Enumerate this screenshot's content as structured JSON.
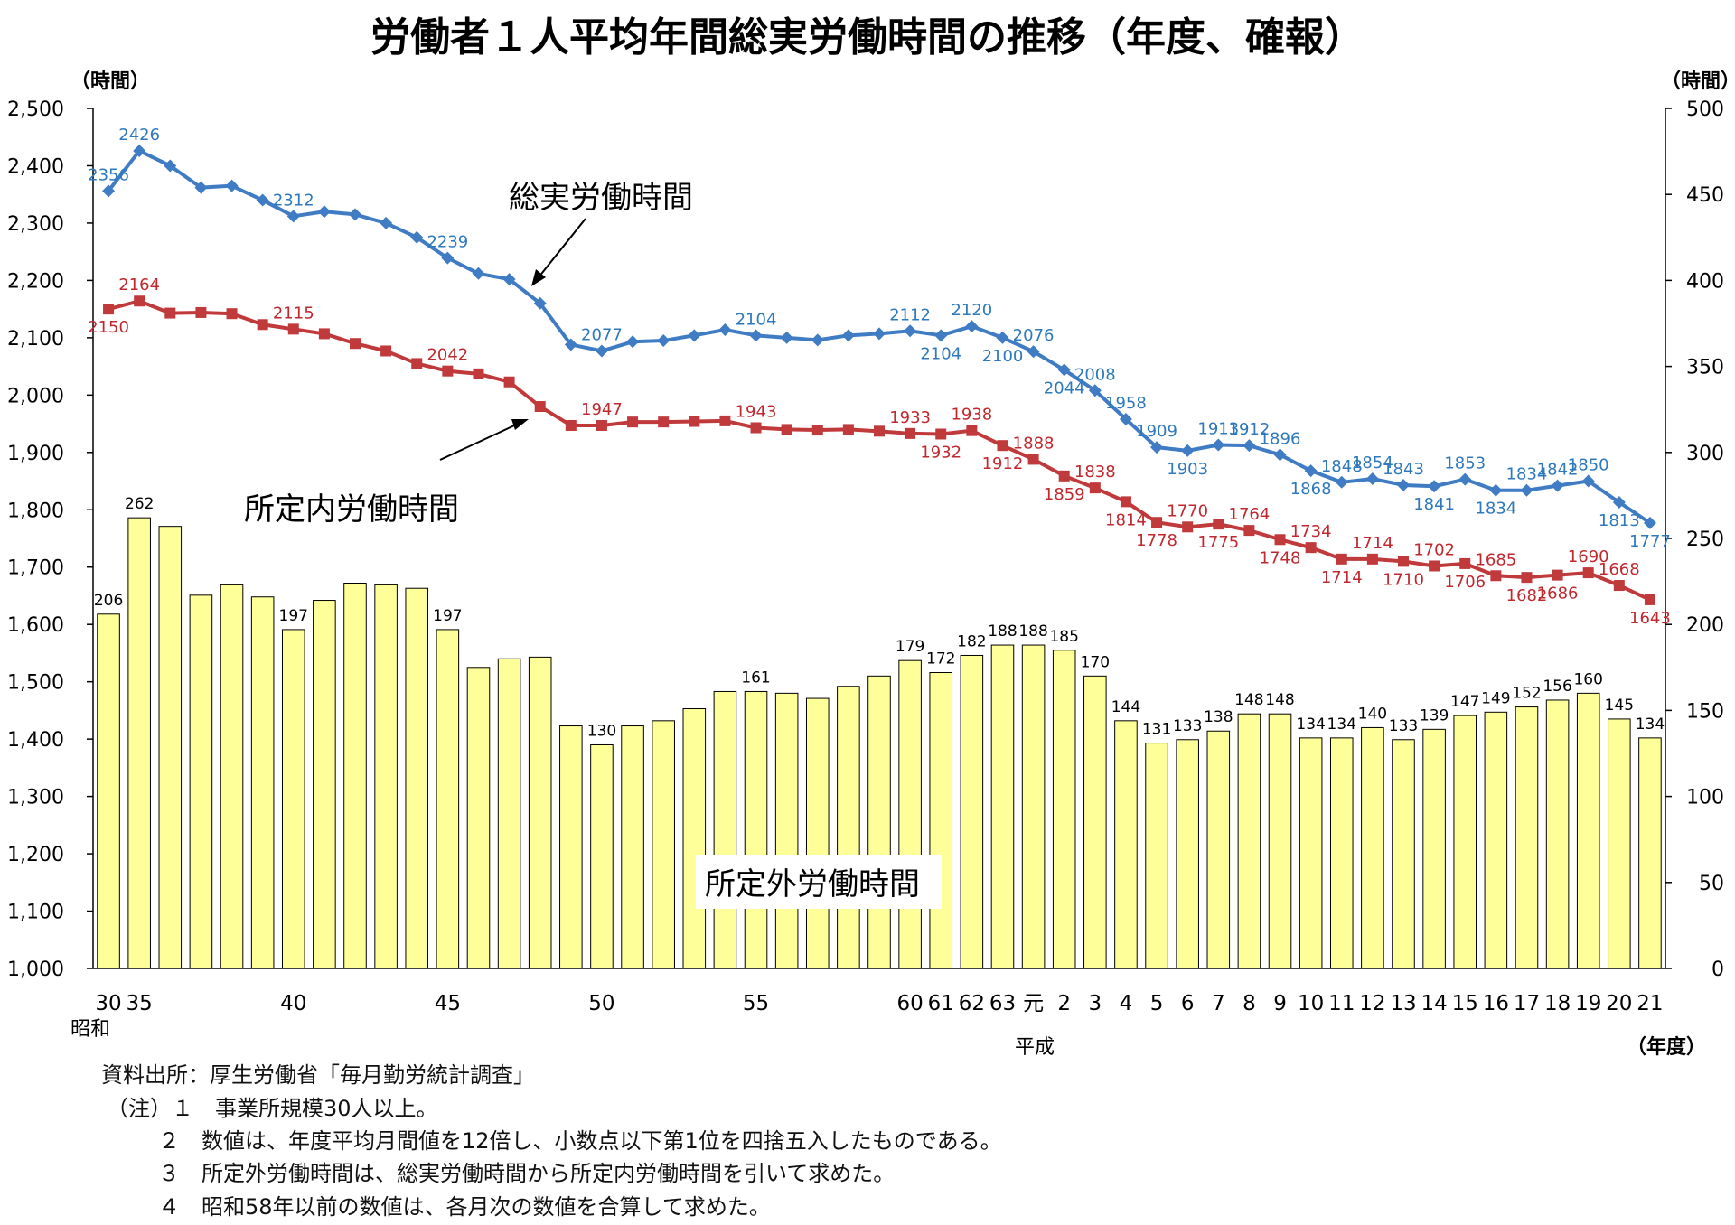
{
  "title": "労働者１人平均年間総実労働時間の推移（年度、確報）",
  "left_axis_unit": "（時間）",
  "right_axis_unit": "（時間）",
  "x_axis_unit": "（年度）",
  "era_showa": "昭和",
  "era_heisei": "平成",
  "callouts": {
    "total": "総実労働時間",
    "scheduled": "所定内労働時間",
    "overtime": "所定外労働時間"
  },
  "notes": {
    "source": "資料出所：厚生労働省「毎月勤労統計調査」",
    "note1": "（注）１　事業所規模30人以上。",
    "note2": "２　数値は、年度平均月間値を12倍し、小数点以下第1位を四捨五入したものである。",
    "note3": "３　所定外労働時間は、総実労働時間から所定内労働時間を引いて求めた。",
    "note4": "４　昭和58年以前の数値は、各月次の数値を合算して求めた。"
  },
  "colors": {
    "total": "#3F7CC4",
    "scheduled": "#C0393B",
    "bars": "#FFFF99",
    "bar_stroke": "#000000"
  },
  "chart_data": {
    "type": "bar+line",
    "x_tick_labels": [
      "30",
      "35",
      "",
      "",
      "",
      "",
      "40",
      "",
      "",
      "",
      "",
      "45",
      "",
      "",
      "",
      "",
      "50",
      "",
      "",
      "",
      "",
      "55",
      "",
      "",
      "",
      "",
      "60",
      "61",
      "62",
      "63",
      "元",
      "2",
      "3",
      "4",
      "5",
      "6",
      "7",
      "8",
      "9",
      "10",
      "11",
      "12",
      "13",
      "14",
      "15",
      "16",
      "17",
      "18",
      "19",
      "20",
      "21"
    ],
    "left_axis": {
      "min": 1000,
      "max": 2500,
      "step": 100,
      "tick_labels": [
        "1,000",
        "1,100",
        "1,200",
        "1,300",
        "1,400",
        "1,500",
        "1,600",
        "1,700",
        "1,800",
        "1,900",
        "2,000",
        "2,100",
        "2,200",
        "2,300",
        "2,400",
        "2,500"
      ]
    },
    "right_axis": {
      "min": 0,
      "max": 500,
      "step": 50,
      "tick_labels": [
        "0",
        "50",
        "100",
        "150",
        "200",
        "250",
        "300",
        "350",
        "400",
        "450",
        "500"
      ]
    },
    "series": [
      {
        "name": "総実労働時間",
        "type": "line",
        "axis": "left",
        "values": [
          2356,
          2426,
          2400,
          2362,
          2365,
          2340,
          2312,
          2320,
          2315,
          2300,
          2275,
          2239,
          2212,
          2202,
          2160,
          2088,
          2077,
          2093,
          2095,
          2104,
          2114,
          2104,
          2100,
          2096,
          2104,
          2107,
          2112,
          2104,
          2120,
          2100,
          2076,
          2044,
          2008,
          1958,
          1909,
          1903,
          1913,
          1912,
          1896,
          1868,
          1848,
          1854,
          1843,
          1841,
          1853,
          1834,
          1834,
          1842,
          1850,
          1813,
          1777
        ],
        "labels": [
          "2356",
          "2426",
          "",
          "",
          "",
          "",
          "2312",
          "",
          "",
          "",
          "",
          "2239",
          "",
          "",
          "",
          "",
          "2077",
          "",
          "",
          "",
          "",
          "2104",
          "",
          "",
          "",
          "",
          "2112",
          "2104",
          "2120",
          "2100",
          "2076",
          "2044",
          "2008",
          "1958",
          "1909",
          "1903",
          "1913",
          "1912",
          "1896",
          "1868",
          "1848",
          "1854",
          "1843",
          "1841",
          "1853",
          "1834",
          "1834",
          "1842",
          "1850",
          "1813",
          "1777"
        ]
      },
      {
        "name": "所定内労働時間",
        "type": "line",
        "axis": "left",
        "values": [
          2150,
          2164,
          2143,
          2144,
          2142,
          2123,
          2115,
          2107,
          2090,
          2077,
          2055,
          2042,
          2037,
          2023,
          1980,
          1947,
          1947,
          1953,
          1953,
          1954,
          1955,
          1943,
          1940,
          1939,
          1940,
          1937,
          1933,
          1932,
          1938,
          1912,
          1888,
          1859,
          1838,
          1814,
          1778,
          1770,
          1775,
          1764,
          1748,
          1734,
          1714,
          1714,
          1710,
          1702,
          1706,
          1685,
          1682,
          1686,
          1690,
          1668,
          1643
        ],
        "labels": [
          "2150",
          "2164",
          "",
          "",
          "",
          "",
          "2115",
          "",
          "",
          "",
          "",
          "2042",
          "",
          "",
          "",
          "",
          "1947",
          "",
          "",
          "",
          "",
          "1943",
          "",
          "",
          "",
          "",
          "1933",
          "1932",
          "1938",
          "1912",
          "1888",
          "1859",
          "1838",
          "1814",
          "1778",
          "1770",
          "1775",
          "1764",
          "1748",
          "1734",
          "1714",
          "1714",
          "1710",
          "1702",
          "1706",
          "1685",
          "1682",
          "1686",
          "1690",
          "1668",
          "1643"
        ]
      },
      {
        "name": "所定外労働時間",
        "type": "bar",
        "axis": "right",
        "values": [
          206,
          262,
          257,
          217,
          223,
          216,
          197,
          214,
          224,
          223,
          221,
          197,
          175,
          180,
          181,
          141,
          130,
          141,
          144,
          151,
          161,
          161,
          160,
          157,
          164,
          170,
          179,
          172,
          182,
          188,
          188,
          185,
          170,
          144,
          131,
          133,
          138,
          148,
          148,
          134,
          134,
          140,
          133,
          139,
          147,
          149,
          152,
          156,
          160,
          145,
          134
        ],
        "labels": [
          "206",
          "262",
          "",
          "",
          "",
          "",
          "197",
          "",
          "",
          "",
          "",
          "197",
          "",
          "",
          "",
          "",
          "130",
          "",
          "",
          "",
          "",
          "161",
          "",
          "",
          "",
          "",
          "179",
          "172",
          "182",
          "188",
          "188",
          "185",
          "170",
          "144",
          "131",
          "133",
          "138",
          "148",
          "148",
          "134",
          "134",
          "140",
          "133",
          "139",
          "147",
          "149",
          "152",
          "156",
          "160",
          "145",
          "134"
        ]
      }
    ]
  }
}
